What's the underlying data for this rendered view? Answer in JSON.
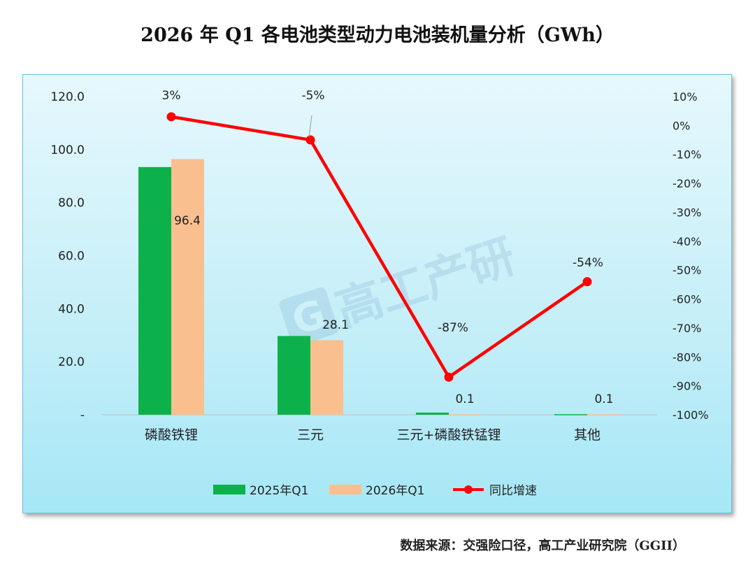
{
  "title": "2026 年 Q1 各电池类型动力电池装机量分析（GWh）",
  "source": "数据来源：交强险口径，高工产业研究院（GGII）",
  "watermark": "高工产研",
  "colors": {
    "bar2025": "#0db14b",
    "bar2026": "#f9bf8f",
    "line": "#ff0000",
    "text": "#222222"
  },
  "chart_data": {
    "type": "bar",
    "categories": [
      "磷酸铁锂",
      "三元",
      "三元+磷酸铁锰锂",
      "其他"
    ],
    "series": [
      {
        "name": "2025年Q1",
        "type": "bar",
        "axis": "left",
        "values": [
          93.4,
          29.7,
          0.8,
          0.2
        ],
        "labels": [
          "",
          "",
          "",
          ""
        ]
      },
      {
        "name": "2026年Q1",
        "type": "bar",
        "axis": "left",
        "values": [
          96.4,
          28.1,
          0.1,
          0.1
        ],
        "labels": [
          "96.4",
          "28.1",
          "0.1",
          "0.1"
        ]
      },
      {
        "name": "同比增速",
        "type": "line",
        "axis": "right",
        "values": [
          3,
          -5,
          -87,
          -54
        ],
        "labels": [
          "3%",
          "-5%",
          "-87%",
          "-54%"
        ]
      }
    ],
    "yleft": {
      "ticks": [
        "-",
        "20.0",
        "40.0",
        "60.0",
        "80.0",
        "100.0",
        "120.0"
      ],
      "ylim": [
        0,
        120
      ]
    },
    "yright": {
      "ticks": [
        "-100%",
        "-90%",
        "-80%",
        "-70%",
        "-60%",
        "-50%",
        "-40%",
        "-30%",
        "-20%",
        "-10%",
        "0%",
        "10%"
      ],
      "ylim": [
        -100,
        10
      ]
    },
    "legend": "bottom",
    "grid": false
  }
}
